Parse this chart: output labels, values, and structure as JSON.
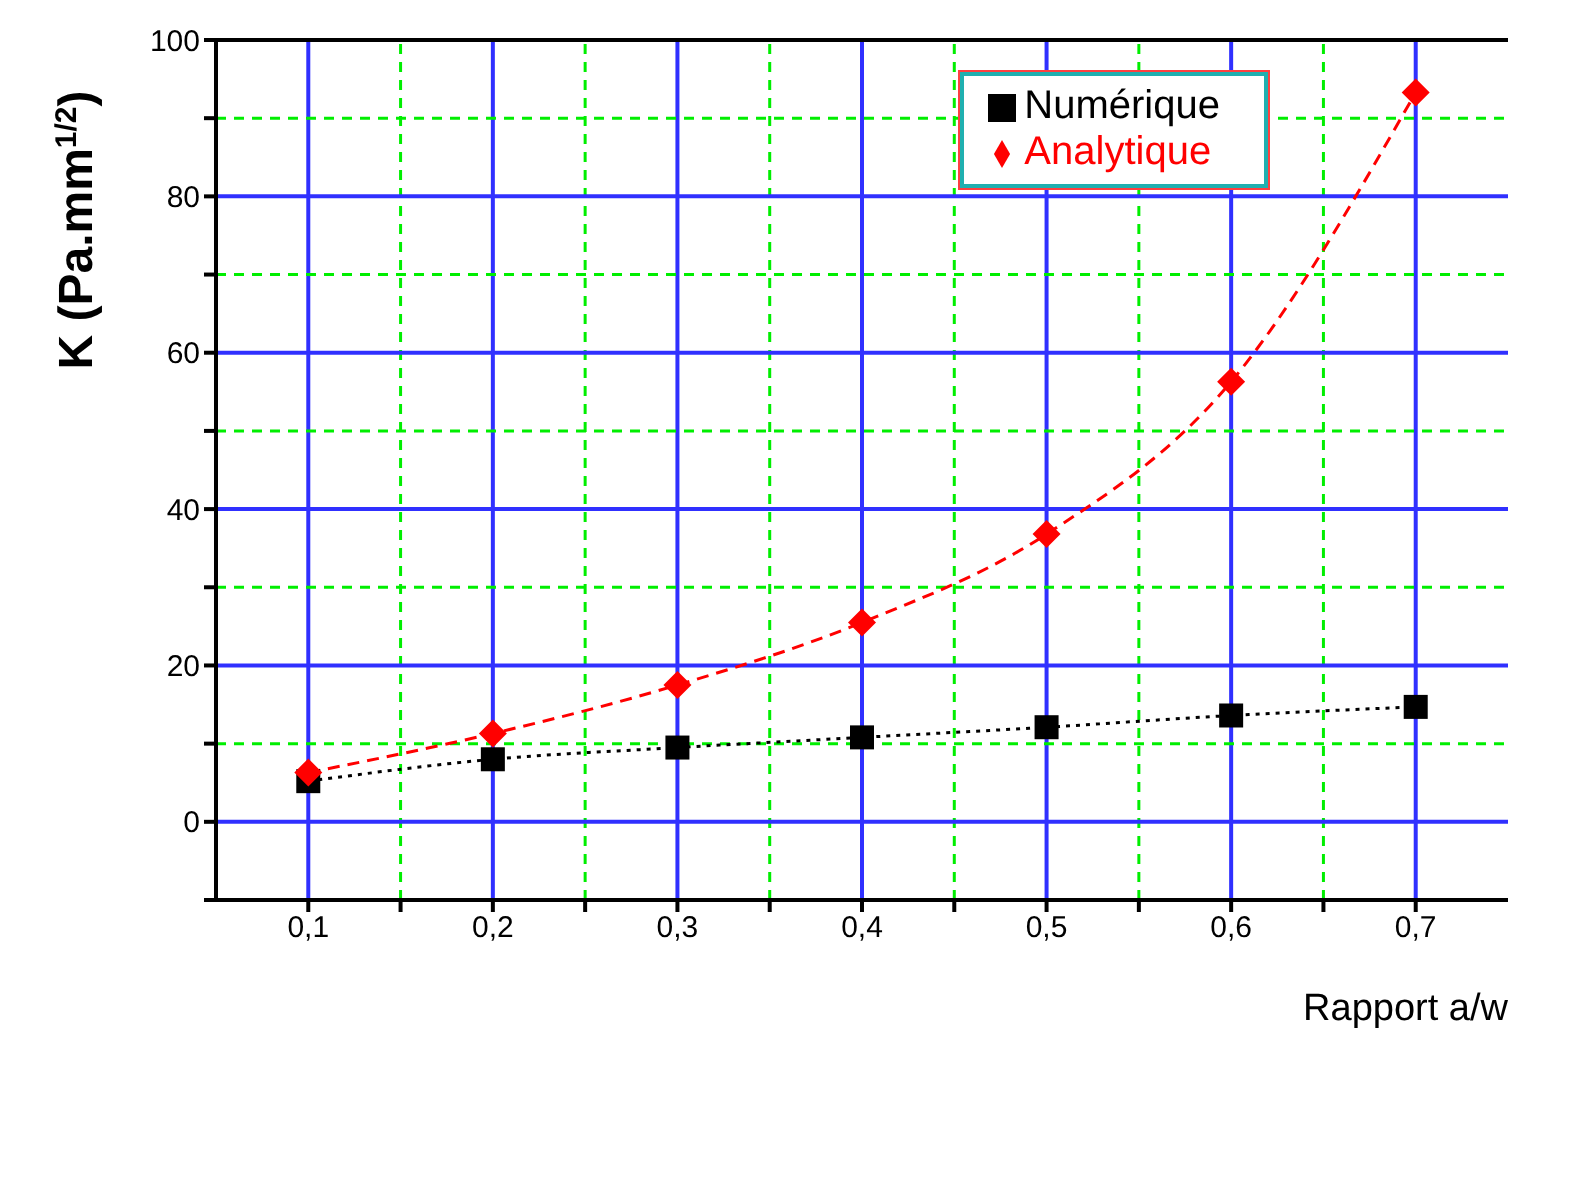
{
  "chart_data": {
    "type": "line",
    "xlabel": "Rapport a/w",
    "ylabel": "K (Pa.mm$^{1/2}$)",
    "x": [
      0.1,
      0.2,
      0.3,
      0.4,
      0.5,
      0.6,
      0.7
    ],
    "series": [
      {
        "name": "Numérique",
        "color": "#000000",
        "marker": "square",
        "line_style": "dotted",
        "values": [
          5.2,
          8,
          9.5,
          10.8,
          12.1,
          13.6,
          14.7
        ]
      },
      {
        "name": "Analytique",
        "color": "#ff0000",
        "marker": "diamond",
        "line_style": "dashed",
        "values": [
          6.3,
          11.3,
          17.5,
          25.5,
          36.8,
          56.3,
          93.3
        ]
      }
    ],
    "xlim": [
      0.05,
      0.75
    ],
    "xticks": [
      {
        "value": 0.1,
        "label": "0,1"
      },
      {
        "value": 0.15,
        "label": null
      },
      {
        "value": 0.2,
        "label": "0,2"
      },
      {
        "value": 0.25,
        "label": null
      },
      {
        "value": 0.3,
        "label": "0,3"
      },
      {
        "value": 0.35,
        "label": null
      },
      {
        "value": 0.4,
        "label": "0,4"
      },
      {
        "value": 0.45,
        "label": null
      },
      {
        "value": 0.5,
        "label": "0,5"
      },
      {
        "value": 0.55,
        "label": null
      },
      {
        "value": 0.6,
        "label": "0,6"
      },
      {
        "value": 0.65,
        "label": null
      },
      {
        "value": 0.7,
        "label": "0,7"
      }
    ],
    "ylim": [
      -10,
      100
    ],
    "yticks": [
      {
        "value": -10,
        "label": null
      },
      0,
      {
        "value": 10,
        "label": null
      },
      20,
      {
        "value": 30,
        "label": null
      },
      40,
      {
        "value": 50,
        "label": null
      },
      60,
      {
        "value": 70,
        "label": null
      },
      80,
      {
        "value": 90,
        "label": null
      },
      100
    ],
    "grid": true,
    "legend": "top right"
  }
}
